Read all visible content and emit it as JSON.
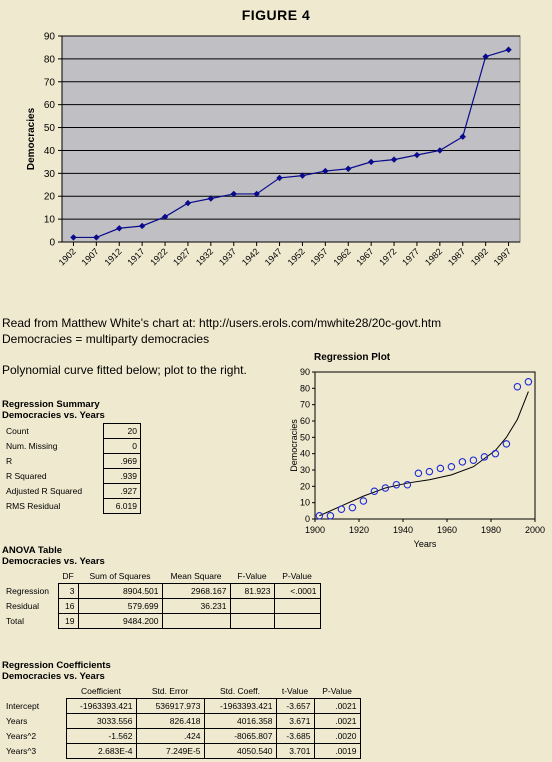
{
  "figure_title": "FIGURE 4",
  "info": {
    "source_line": "Read from Matthew White's chart at: http://users.erols.com/mwhite28/20c-govt.htm",
    "definition_line": "Democracies = multiparty democracies",
    "poly_line": "Polynomial curve fitted below; plot to the right."
  },
  "chart_data": [
    {
      "type": "line",
      "title": "",
      "xlabel": "",
      "ylabel": "Democracies",
      "ylim": [
        0,
        90
      ],
      "yticks": [
        0,
        10,
        20,
        30,
        40,
        50,
        60,
        70,
        80,
        90
      ],
      "grid": true,
      "categories": [
        "1902",
        "1907",
        "1912",
        "1917",
        "1922",
        "1927",
        "1932",
        "1937",
        "1942",
        "1947",
        "1952",
        "1957",
        "1962",
        "1967",
        "1972",
        "1977",
        "1982",
        "1987",
        "1992",
        "1997"
      ],
      "series": [
        {
          "values": [
            2,
            2,
            6,
            7,
            11,
            17,
            19,
            21,
            21,
            28,
            29,
            31,
            32,
            35,
            36,
            38,
            40,
            46,
            81,
            84
          ],
          "color": "#0a0a8c"
        }
      ]
    },
    {
      "type": "scatter",
      "title": "Regression Plot",
      "xlabel": "Years",
      "ylabel": "Democracies",
      "xlim": [
        1900,
        2000
      ],
      "ylim": [
        0,
        90
      ],
      "xticks": [
        1900,
        1920,
        1940,
        1960,
        1980,
        2000
      ],
      "yticks": [
        0,
        10,
        20,
        30,
        40,
        50,
        60,
        70,
        80,
        90
      ],
      "points": {
        "x": [
          1902,
          1907,
          1912,
          1917,
          1922,
          1927,
          1932,
          1937,
          1942,
          1947,
          1952,
          1957,
          1962,
          1967,
          1972,
          1977,
          1982,
          1987,
          1992,
          1997
        ],
        "y": [
          2,
          2,
          6,
          7,
          11,
          17,
          19,
          21,
          21,
          28,
          29,
          31,
          32,
          35,
          36,
          38,
          40,
          46,
          81,
          84
        ]
      },
      "fit_curve": {
        "x": [
          1902,
          1912,
          1922,
          1932,
          1942,
          1952,
          1962,
          1972,
          1982,
          1987,
          1992,
          1997
        ],
        "y": [
          2,
          8,
          14,
          19,
          22,
          24,
          27,
          32,
          42,
          50,
          61,
          78
        ]
      },
      "point_color": "#1d2bd8"
    }
  ],
  "summary": {
    "title": "Regression Summary",
    "subtitle": "Democracies vs. Years",
    "rows": [
      {
        "label": "Count",
        "value": "20"
      },
      {
        "label": "Num. Missing",
        "value": "0"
      },
      {
        "label": "R",
        "value": ".969"
      },
      {
        "label": "R Squared",
        "value": ".939"
      },
      {
        "label": "Adjusted R Squared",
        "value": ".927"
      },
      {
        "label": "RMS Residual",
        "value": "6.019"
      }
    ]
  },
  "anova": {
    "title": "ANOVA Table",
    "subtitle": "Democracies vs. Years",
    "headers": [
      "",
      "DF",
      "Sum of Squares",
      "Mean Square",
      "F-Value",
      "P-Value"
    ],
    "rows": [
      [
        "Regression",
        "3",
        "8904.501",
        "2968.167",
        "81.923",
        "<.0001"
      ],
      [
        "Residual",
        "16",
        "579.699",
        "36.231",
        "",
        ""
      ],
      [
        "Total",
        "19",
        "9484.200",
        "",
        "",
        ""
      ]
    ]
  },
  "coefficients": {
    "title": "Regression Coefficients",
    "subtitle": "Democracies vs. Years",
    "headers": [
      "",
      "Coefficient",
      "Std. Error",
      "Std. Coeff.",
      "t-Value",
      "P-Value"
    ],
    "rows": [
      [
        "Intercept",
        "-1963393.421",
        "536917.973",
        "-1963393.421",
        "-3.657",
        ".0021"
      ],
      [
        "Years",
        "3033.556",
        "826.418",
        "4016.358",
        "3.671",
        ".0021"
      ],
      [
        "Years^2",
        "-1.562",
        ".424",
        "-8065.807",
        "-3.685",
        ".0020"
      ],
      [
        "Years^3",
        "2.683E-4",
        "7.249E-5",
        "4050.540",
        "3.701",
        ".0019"
      ]
    ]
  }
}
